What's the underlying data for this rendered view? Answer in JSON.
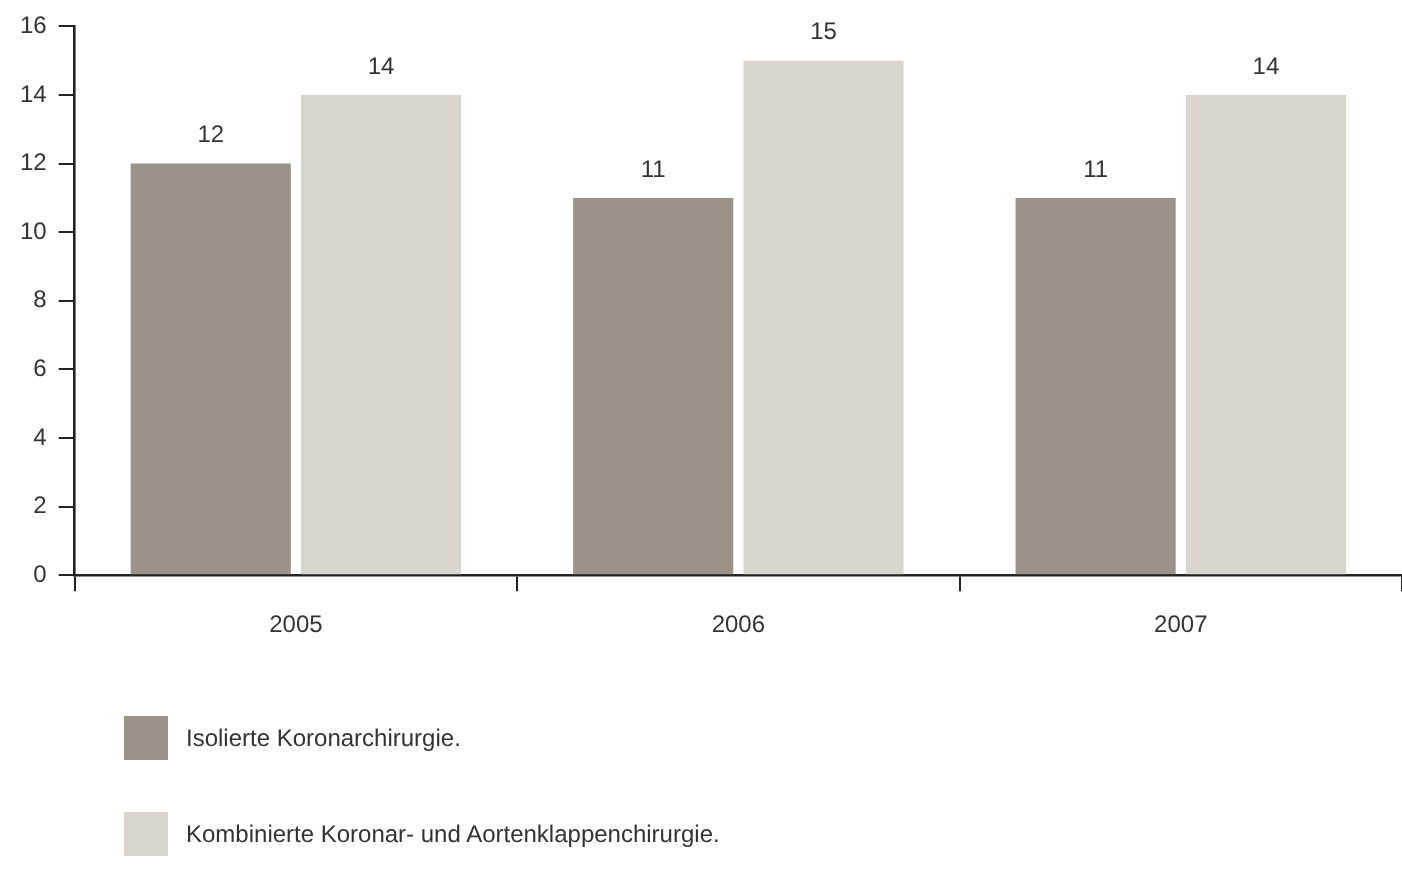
{
  "chart_data": {
    "type": "bar",
    "categories": [
      "2005",
      "2006",
      "2007"
    ],
    "series": [
      {
        "name": "Isolierte Koronarchirurgie.",
        "color": "#9c9388",
        "values": [
          12,
          11,
          11
        ]
      },
      {
        "name": "Kombinierte Koronar- und Aortenklappenchirurgie.",
        "color": "#d9d5ce",
        "values": [
          14,
          15,
          14
        ]
      }
    ],
    "ylim": [
      0,
      16
    ],
    "yticks": [
      0,
      2,
      4,
      6,
      8,
      10,
      12,
      14,
      16
    ],
    "grid": false,
    "legend": "bottom left",
    "data_labels": true
  }
}
